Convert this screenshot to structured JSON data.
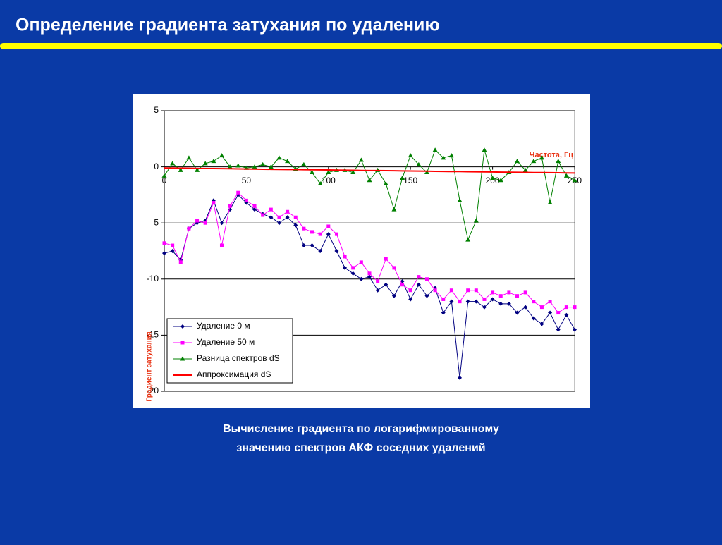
{
  "slide": {
    "title": "Определение градиента затухания по удалению",
    "caption": [
      "Вычисление градиента по логарифмированному",
      "значению спектров АКФ соседних удалений"
    ]
  },
  "chart_data": {
    "type": "line",
    "x_label": "Частота, Гц",
    "y_label": "Градиент затухания",
    "x": [
      0,
      5,
      10,
      15,
      20,
      25,
      30,
      35,
      40,
      45,
      50,
      55,
      60,
      65,
      70,
      75,
      80,
      85,
      90,
      95,
      100,
      105,
      110,
      115,
      120,
      125,
      130,
      135,
      140,
      145,
      150,
      155,
      160,
      165,
      170,
      175,
      180,
      185,
      190,
      195,
      200,
      205,
      210,
      215,
      220,
      225,
      230,
      235,
      240,
      245,
      250
    ],
    "xlim": [
      0,
      250
    ],
    "xticks": [
      0,
      50,
      100,
      150,
      200,
      250
    ],
    "ylim": [
      -20,
      5
    ],
    "yticks": [
      5,
      0,
      -5,
      -10,
      -15,
      -20
    ],
    "grid": true,
    "legend": "lower left",
    "series": [
      {
        "name": "Удаление 0 м",
        "color": "#000080",
        "marker": "diamond",
        "values": [
          -7.7,
          -7.5,
          -8.3,
          -5.5,
          -5.0,
          -4.8,
          -3.0,
          -5.0,
          -3.8,
          -2.5,
          -3.2,
          -3.8,
          -4.2,
          -4.5,
          -5.0,
          -4.5,
          -5.2,
          -7.0,
          -7.0,
          -7.5,
          -6.0,
          -7.5,
          -9.0,
          -9.5,
          -10.0,
          -9.8,
          -11.0,
          -10.5,
          -11.5,
          -10.2,
          -11.8,
          -10.5,
          -11.5,
          -10.8,
          -13.0,
          -12.0,
          -18.8,
          -12.0,
          -12.0,
          -12.5,
          -11.8,
          -12.2,
          -12.2,
          -13.0,
          -12.5,
          -13.5,
          -14.0,
          -13.0,
          -14.5,
          -13.2,
          -14.5
        ]
      },
      {
        "name": "Удаление 50 м",
        "color": "#ff00ff",
        "marker": "square",
        "values": [
          -6.8,
          -7.0,
          -8.5,
          -5.5,
          -4.8,
          -5.0,
          -3.2,
          -7.0,
          -3.5,
          -2.3,
          -3.0,
          -3.5,
          -4.3,
          -3.8,
          -4.5,
          -4.0,
          -4.5,
          -5.5,
          -5.8,
          -6.0,
          -5.3,
          -6.0,
          -8.0,
          -9.0,
          -8.5,
          -9.5,
          -10.2,
          -8.2,
          -9.0,
          -10.5,
          -11.0,
          -9.8,
          -10.0,
          -11.0,
          -11.8,
          -11.0,
          -12.0,
          -11.0,
          -11.0,
          -11.8,
          -11.2,
          -11.5,
          -11.2,
          -11.5,
          -11.2,
          -12.0,
          -12.5,
          -12.0,
          -13.0,
          -12.5,
          -12.5
        ]
      },
      {
        "name": "Разница спектров dS",
        "color": "#008000",
        "marker": "triangle",
        "values": [
          -0.8,
          0.3,
          -0.3,
          0.8,
          -0.3,
          0.3,
          0.5,
          1.0,
          0,
          0.1,
          -0.1,
          0,
          0.2,
          0,
          0.8,
          0.5,
          -0.2,
          0.2,
          -0.5,
          -1.5,
          -0.5,
          -0.3,
          -0.3,
          -0.5,
          0.6,
          -1.2,
          -0.3,
          -1.5,
          -3.8,
          -1.0,
          1.0,
          0.2,
          -0.5,
          1.5,
          0.8,
          1.0,
          -3.0,
          -6.5,
          -4.8,
          1.5,
          -1.0,
          -1.2,
          -0.5,
          0.5,
          -0.3,
          0.5,
          0.8,
          -3.2,
          0.5,
          -0.8,
          -1.2
        ]
      },
      {
        "name": "Аппроксимация dS",
        "color": "#ff0000",
        "marker": "none",
        "values": [
          -0.1,
          -0.11,
          -0.12,
          -0.13,
          -0.14,
          -0.15,
          -0.15,
          -0.16,
          -0.17,
          -0.18,
          -0.19,
          -0.2,
          -0.21,
          -0.22,
          -0.23,
          -0.24,
          -0.24,
          -0.25,
          -0.26,
          -0.27,
          -0.28,
          -0.29,
          -0.3,
          -0.31,
          -0.32,
          -0.33,
          -0.33,
          -0.34,
          -0.35,
          -0.36,
          -0.37,
          -0.38,
          -0.39,
          -0.4,
          -0.41,
          -0.42,
          -0.42,
          -0.43,
          -0.44,
          -0.45,
          -0.46,
          -0.47,
          -0.48,
          -0.49,
          -0.5,
          -0.51,
          -0.51,
          -0.52,
          -0.53,
          -0.54,
          -0.55
        ]
      }
    ]
  }
}
